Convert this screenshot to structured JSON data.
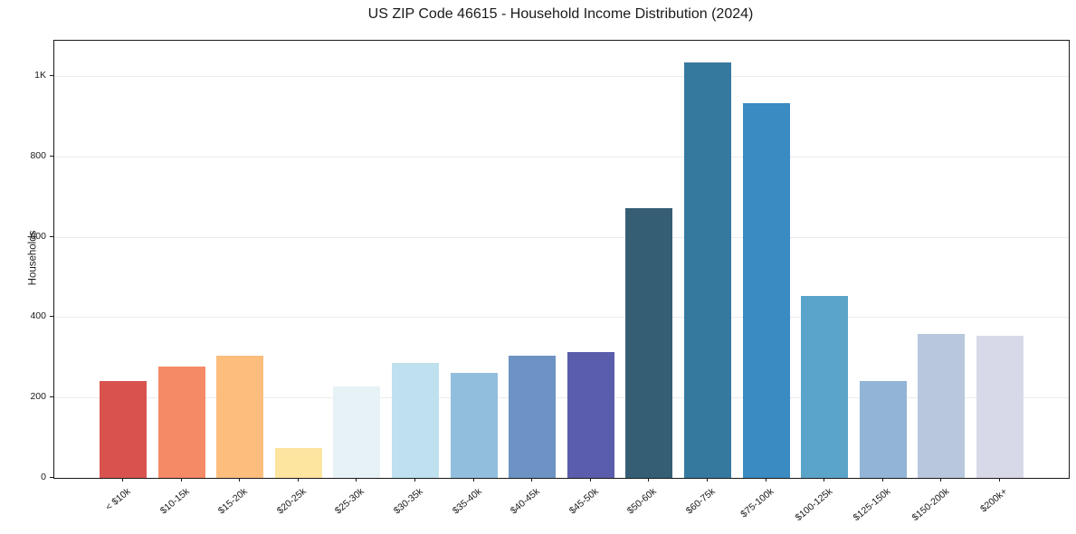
{
  "chart_data": {
    "type": "bar",
    "title": "US ZIP Code 46615 - Household Income Distribution (2024)",
    "xlabel": "",
    "ylabel": "Households",
    "categories": [
      "< $10k",
      "$10-15k",
      "$15-20k",
      "$20-25k",
      "$25-30k",
      "$30-35k",
      "$35-40k",
      "$40-45k",
      "$45-50k",
      "$50-60k",
      "$60-75k",
      "$75-100k",
      "$100-125k",
      "$125-150k",
      "$150-200k",
      "$200k+"
    ],
    "values": [
      242,
      278,
      304,
      74,
      228,
      285,
      262,
      305,
      314,
      672,
      1034,
      933,
      453,
      240,
      358,
      354
    ],
    "bar_colors": [
      "#d9534e",
      "#f58a66",
      "#fcbd7d",
      "#fde5a0",
      "#e6f2f6",
      "#bfe0ee",
      "#92bedd",
      "#6c93c4",
      "#5a5dab",
      "#355e74",
      "#36799f",
      "#398bc1",
      "#5ba4c9",
      "#92b4d6",
      "#b8c7de",
      "#d8d9e8"
    ],
    "ylim": [
      0,
      1088
    ],
    "yticks": [
      {
        "value": 0,
        "label": "0"
      },
      {
        "value": 200,
        "label": "200"
      },
      {
        "value": 400,
        "label": "400"
      },
      {
        "value": 600,
        "label": "600"
      },
      {
        "value": 800,
        "label": "800"
      },
      {
        "value": 1000,
        "label": "1K"
      }
    ],
    "grid": "horizontal",
    "grid_color": "#ebebeb",
    "axis_color": "#1a1a1a",
    "legend": "none"
  }
}
